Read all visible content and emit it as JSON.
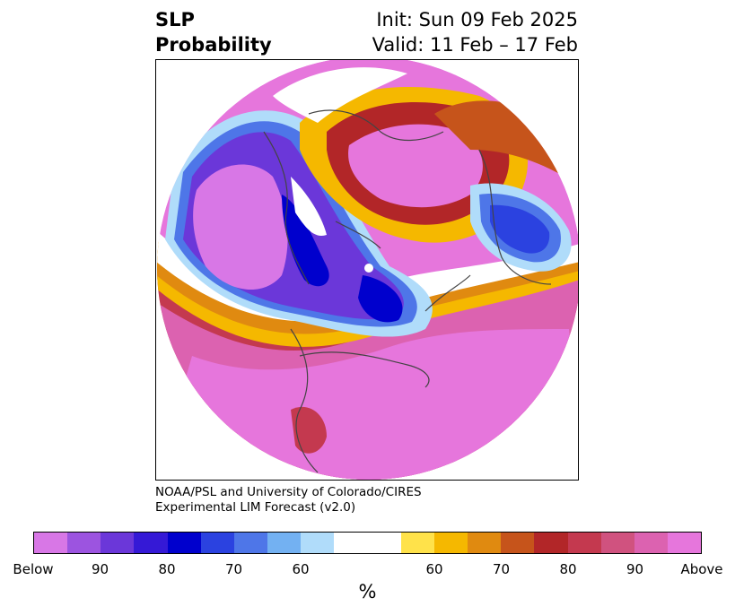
{
  "title": {
    "left_line1": "SLP",
    "left_line2": "Probability",
    "right_line1": "Init: Sun 09 Feb 2025",
    "right_line2": "Valid: 11 Feb – 17 Feb"
  },
  "credit": {
    "line1": "NOAA/PSL and University of Colorado/CIRES",
    "line2": "Experimental LIM Forecast (v2.0)"
  },
  "colorbar": {
    "colors": [
      "#d877e6",
      "#9c54e0",
      "#6b37d9",
      "#3519d6",
      "#0000cd",
      "#2b42e0",
      "#4e76e8",
      "#73b1f2",
      "#b0dcfa",
      "#ffffff",
      "#ffffff",
      "#ffe24a",
      "#f5b800",
      "#e08a10",
      "#c6541b",
      "#b22628",
      "#c4394f",
      "#d0527f",
      "#dc62b0",
      "#e676dc"
    ],
    "tick_labels": [
      "Below",
      "90",
      "80",
      "70",
      "60",
      "60",
      "70",
      "80",
      "90",
      "Above"
    ],
    "unit_label": "%"
  },
  "legend_colors": {
    "below_strong": "#d877e6",
    "below_mid": "#0000cd",
    "neutral": "#ffffff",
    "above_mid": "#f5b800",
    "above_strong": "#e676dc"
  }
}
